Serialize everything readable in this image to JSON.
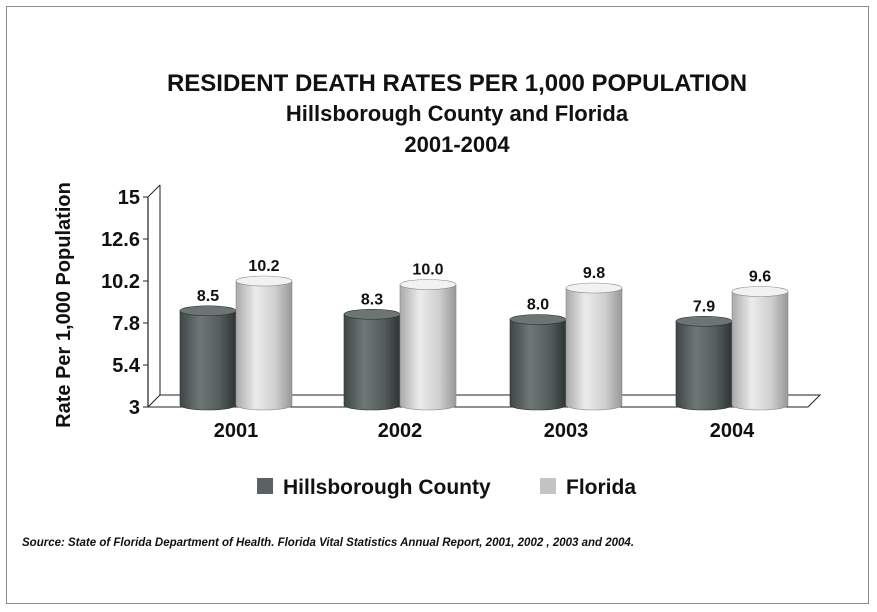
{
  "chart_data": {
    "type": "bar",
    "title": [
      "RESIDENT DEATH RATES PER 1,000 POPULATION",
      "Hillsborough County and Florida",
      "2001-2004"
    ],
    "xlabel": "",
    "ylabel": "Rate Per 1,000 Population",
    "ylim": [
      3,
      15
    ],
    "yticks": [
      "3",
      "5.4",
      "7.8",
      "10.2",
      "12.6",
      "15"
    ],
    "categories": [
      "2001",
      "2002",
      "2003",
      "2004"
    ],
    "series": [
      {
        "name": "Hillsborough County",
        "values": [
          8.5,
          8.3,
          8.0,
          7.9
        ],
        "labels": [
          "8.5",
          "8.3",
          "8.0",
          "7.9"
        ],
        "color": "#5a6262"
      },
      {
        "name": "Florida",
        "values": [
          10.2,
          10.0,
          9.8,
          9.6
        ],
        "labels": [
          "10.2",
          "10.0",
          "9.8",
          "9.6"
        ],
        "color": "#c4c4c4"
      }
    ],
    "legend_position": "bottom",
    "grid": false,
    "bar_style": "3d-cylinder"
  },
  "source": "Source:  State of Florida Department of Health.  Florida Vital Statistics Annual Report, 2001, 2002 , 2003 and 2004."
}
